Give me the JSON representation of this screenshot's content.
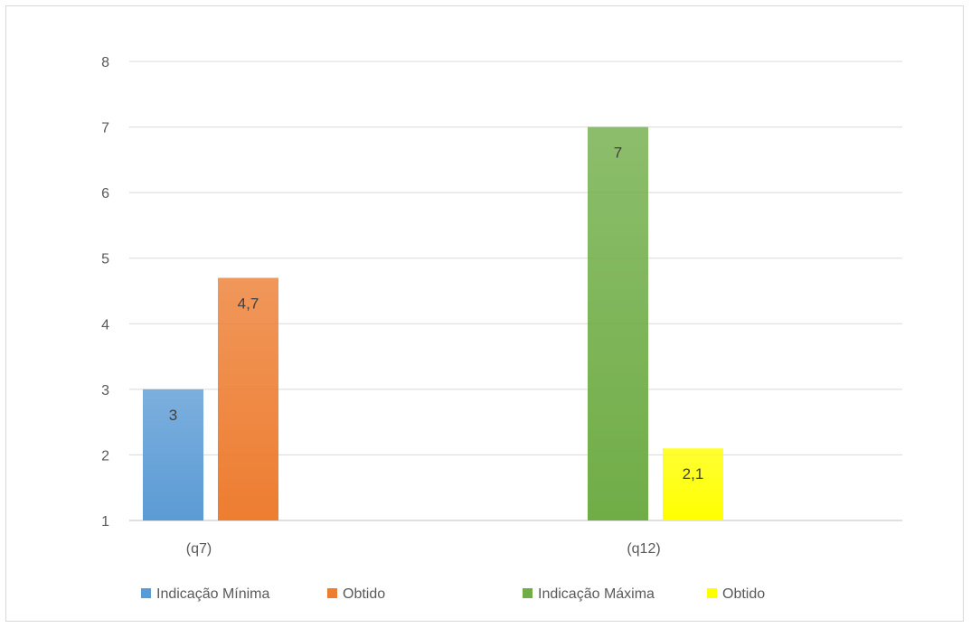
{
  "chart_data": {
    "type": "bar",
    "title": "",
    "xlabel": "",
    "ylabel": "",
    "ylim": [
      1,
      8
    ],
    "yticks": [
      "1",
      "2",
      "3",
      "4",
      "5",
      "6",
      "7",
      "8"
    ],
    "grid": true,
    "legend_position": "bottom",
    "categories": [
      "(q7)",
      "(q12)"
    ],
    "series": [
      {
        "name": "Indicação Mínima",
        "category": "(q7)",
        "value": 3,
        "label": "3",
        "color": "#5b9bd5"
      },
      {
        "name": "Obtido",
        "category": "(q7)",
        "value": 4.7,
        "label": "4,7",
        "color": "#ed7d31"
      },
      {
        "name": "Indicação Máxima",
        "category": "(q12)",
        "value": 7,
        "label": "7",
        "color": "#70ad47"
      },
      {
        "name": "Obtido",
        "category": "(q12)",
        "value": 2.1,
        "label": "2,1",
        "color": "#ffff00"
      }
    ]
  }
}
